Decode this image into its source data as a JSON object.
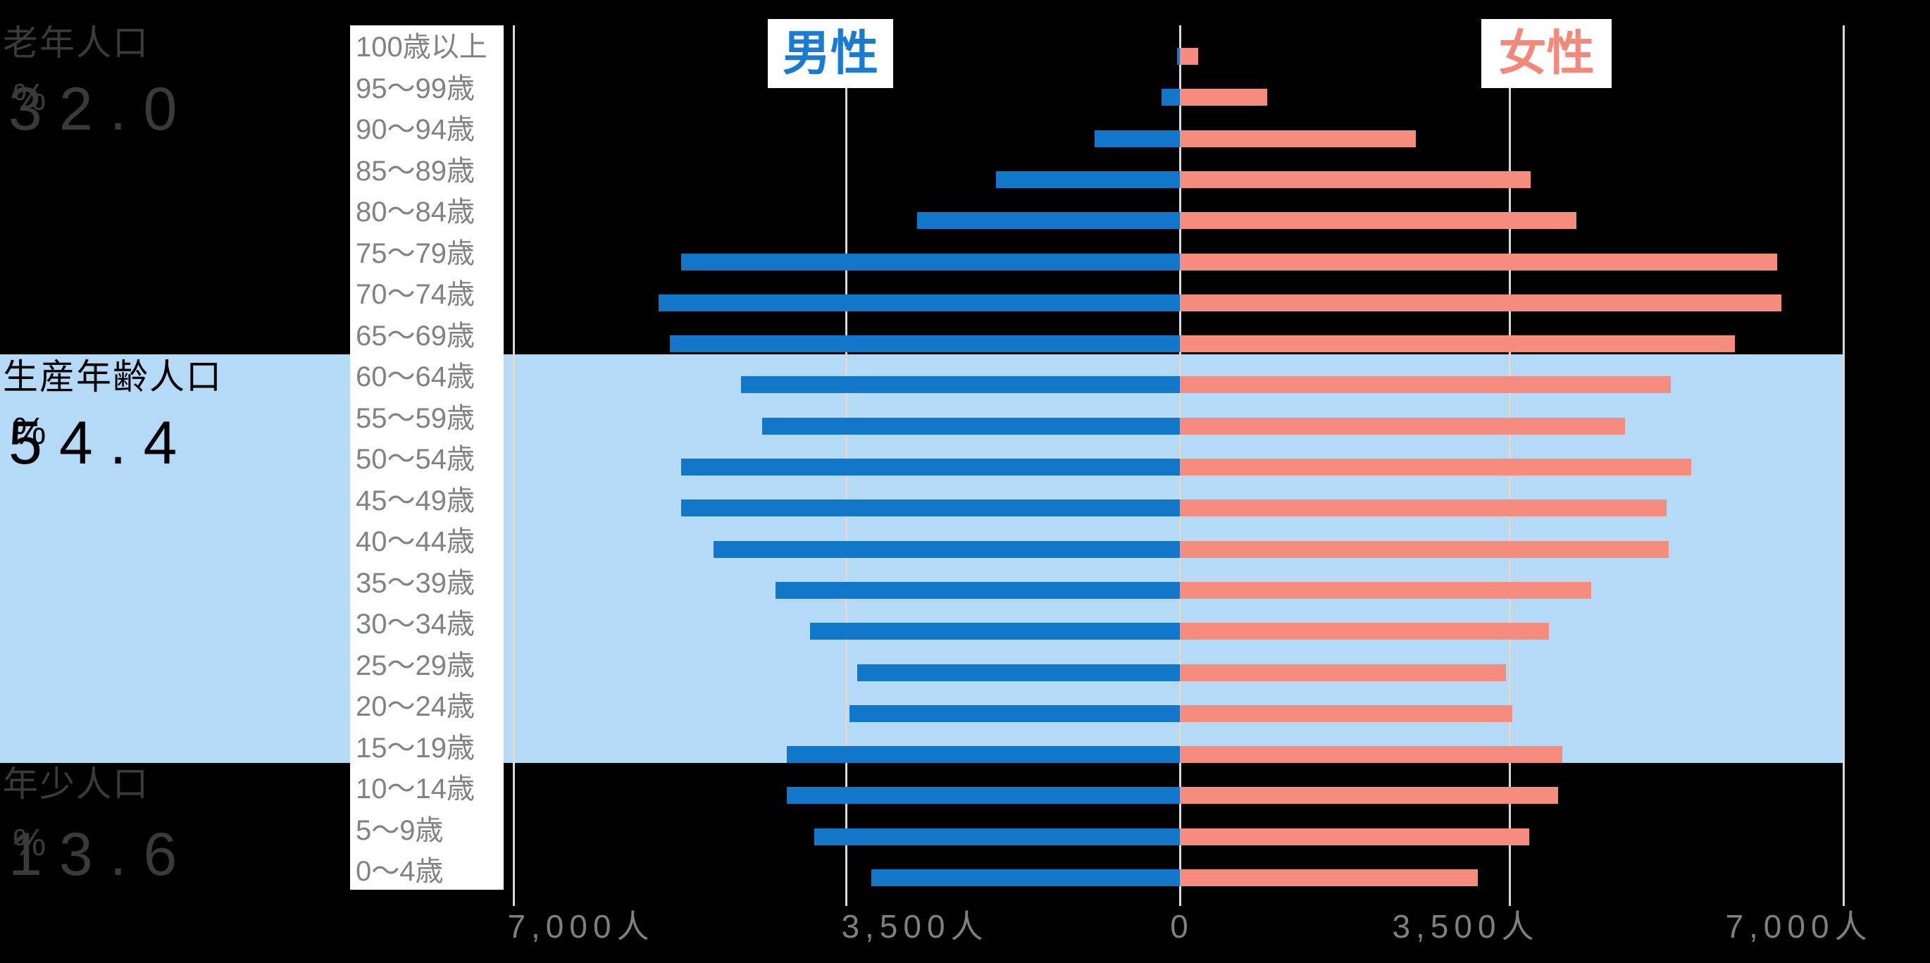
{
  "annotations": {
    "elderly": {
      "label": "老年人口",
      "value": "32.0",
      "unit": "%"
    },
    "working": {
      "label": "生産年齢人口",
      "value": "54.4",
      "unit": "%"
    },
    "young": {
      "label": "年少人口",
      "value": "13.6",
      "unit": "%"
    }
  },
  "legend": {
    "male": "男性",
    "female": "女性"
  },
  "axis": {
    "tick_labels": [
      "7,000人",
      "3,500人",
      "0",
      "3,500人",
      "7,000人"
    ],
    "tick_values": [
      -7000,
      -3500,
      0,
      3500,
      7000
    ],
    "unit": "人"
  },
  "colors": {
    "male_bar": "#1277c8",
    "female_bar": "#f68c7d",
    "working_band": "#b5daf7",
    "gridline": "#d9d9d9",
    "background": "#000000",
    "age_label_text": "#828282",
    "axis_text": "#7f7f7f",
    "dim_annotation_text": "#3a3a3a",
    "male_legend_text": "#1b7bd0",
    "female_legend_text": "#f4897b"
  },
  "chart_data": {
    "type": "bar",
    "subtype": "population-pyramid",
    "orientation": "horizontal",
    "categories": [
      "100歳以上",
      "95〜99歳",
      "90〜94歳",
      "85〜89歳",
      "80〜84歳",
      "75〜79歳",
      "70〜74歳",
      "65〜69歳",
      "60〜64歳",
      "55〜59歳",
      "50〜54歳",
      "45〜49歳",
      "40〜44歳",
      "35〜39歳",
      "30〜34歳",
      "25〜29歳",
      "20〜24歳",
      "15〜19歳",
      "10〜14歳",
      "5〜9歳",
      "0〜4歳"
    ],
    "series": [
      {
        "name": "男性",
        "side": "left",
        "color": "#1277c8",
        "values": [
          30,
          195,
          900,
          1935,
          2765,
          5250,
          5490,
          5365,
          4620,
          4400,
          5250,
          5250,
          4910,
          4255,
          3895,
          3395,
          3480,
          4140,
          4140,
          3850,
          3250
        ]
      },
      {
        "name": "女性",
        "side": "right",
        "color": "#f68c7d",
        "values": [
          195,
          920,
          2485,
          3695,
          4175,
          6285,
          6335,
          5840,
          5165,
          4690,
          5385,
          5125,
          5145,
          4330,
          3885,
          3430,
          3500,
          4030,
          3985,
          3675,
          3140
        ]
      }
    ],
    "xlabel": "",
    "ylabel": "",
    "xlim": [
      -7000,
      7000
    ],
    "x_unit": "人",
    "grid": true,
    "highlight_band": {
      "label": "生産年齢人口",
      "covers": "15〜64歳",
      "color": "#b5daf7"
    },
    "annotations": [
      {
        "label": "老年人口",
        "value_pct": 32.0,
        "covers": "65歳以上"
      },
      {
        "label": "生産年齢人口",
        "value_pct": 54.4,
        "covers": "15〜64歳"
      },
      {
        "label": "年少人口",
        "value_pct": 13.6,
        "covers": "0〜14歳"
      }
    ]
  }
}
